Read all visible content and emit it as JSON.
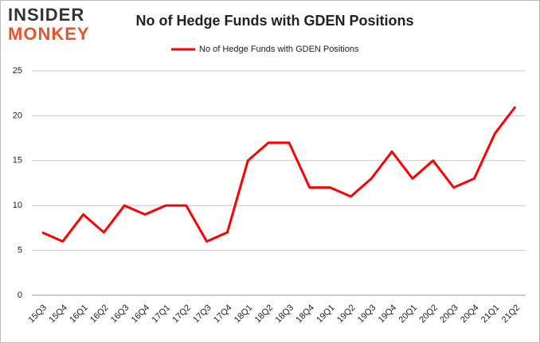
{
  "logo": {
    "line1": "INSIDER",
    "line2": "MONKEY"
  },
  "chart_data": {
    "type": "line",
    "title": "No of Hedge Funds with GDEN Positions",
    "categories": [
      "15Q3",
      "15Q4",
      "16Q1",
      "16Q2",
      "16Q3",
      "16Q4",
      "17Q1",
      "17Q2",
      "17Q3",
      "17Q4",
      "18Q1",
      "18Q2",
      "18Q3",
      "18Q4",
      "19Q1",
      "19Q2",
      "19Q3",
      "19Q4",
      "20Q1",
      "20Q2",
      "20Q3",
      "20Q4",
      "21Q1",
      "21Q2"
    ],
    "series": [
      {
        "name": "No of Hedge Funds with GDEN Positions",
        "color": "#ff0000",
        "values": [
          7,
          6,
          9,
          7,
          10,
          9,
          10,
          10,
          6,
          7,
          15,
          17,
          17,
          12,
          12,
          11,
          13,
          16,
          13,
          15,
          12,
          13,
          18,
          21
        ]
      }
    ],
    "ylim": [
      0,
      25
    ],
    "yticks": [
      0,
      5,
      10,
      15,
      20,
      25
    ],
    "grid": true,
    "legend": "top"
  }
}
